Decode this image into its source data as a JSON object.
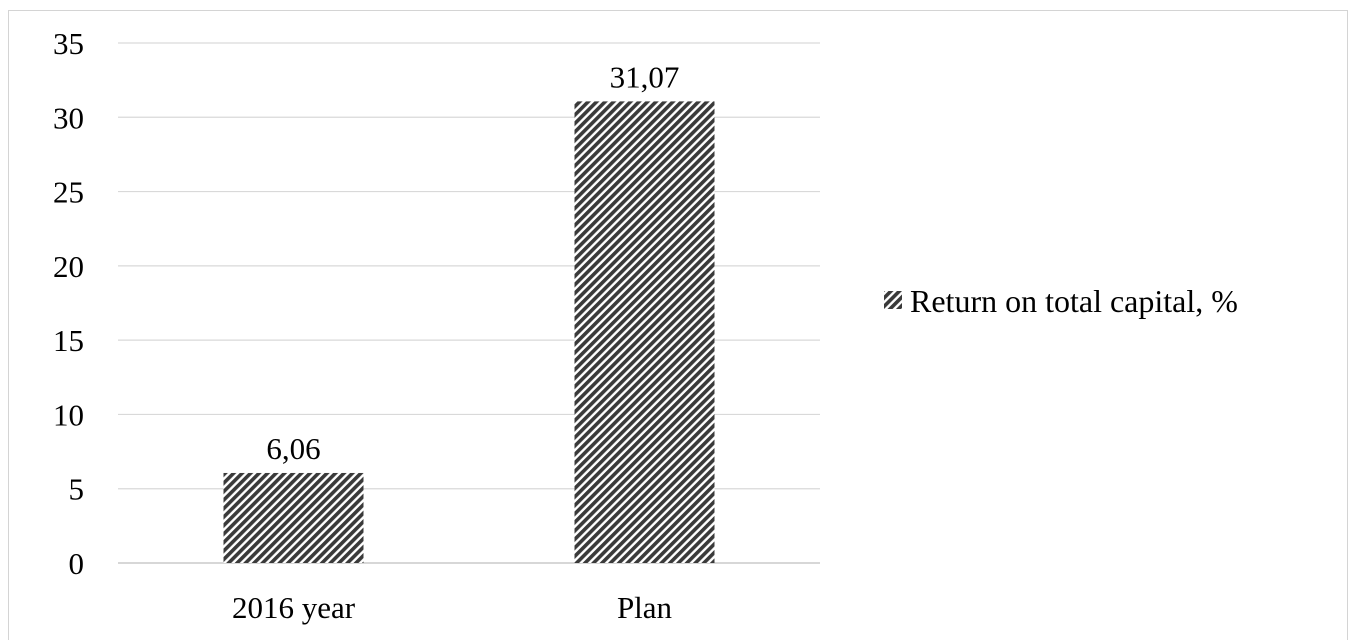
{
  "chart_data": {
    "type": "bar",
    "categories": [
      "2016 year",
      "Plan"
    ],
    "series": [
      {
        "name": "Return on total capital, %",
        "values": [
          6.06,
          31.07
        ],
        "data_labels": [
          "6,06",
          "31,07"
        ]
      }
    ],
    "yticks": [
      "0",
      "5",
      "10",
      "15",
      "20",
      "25",
      "30",
      "35"
    ],
    "ylim": [
      0,
      35
    ],
    "grid": true,
    "legend_position": "right",
    "bar_pattern": "diagonal-hatch",
    "colors": {
      "bar_fill": "#3a3a3a",
      "gridline": "#d9d9d9",
      "text": "#000000"
    }
  }
}
